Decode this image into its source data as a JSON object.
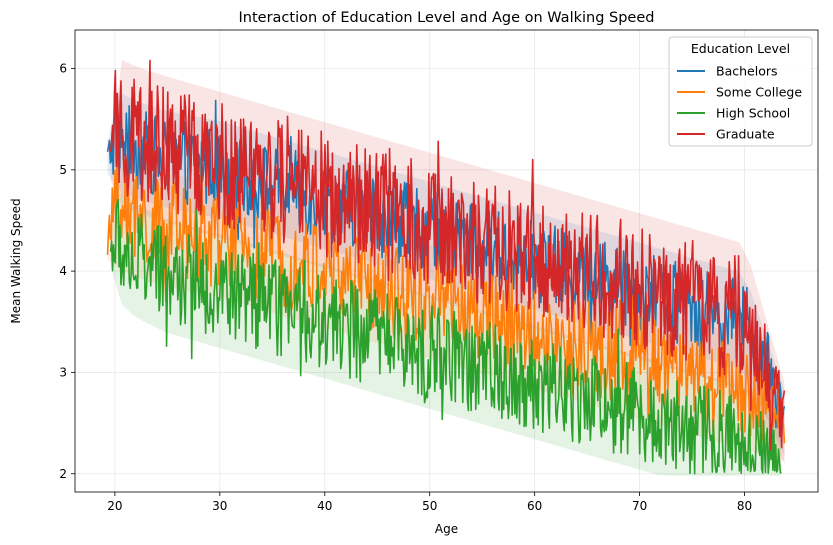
{
  "chart_data": {
    "type": "line",
    "title": "Interaction of Education Level and Age on Walking Speed",
    "xlabel": "Age",
    "ylabel": "Mean Walking Speed",
    "xlim": [
      16.2,
      87
    ],
    "ylim": [
      1.82,
      6.38
    ],
    "xticks": [
      20,
      30,
      40,
      50,
      60,
      70,
      80
    ],
    "yticks": [
      2,
      3,
      4,
      5,
      6
    ],
    "grid": true,
    "legend": {
      "title": "Education Level",
      "placement": "top-right"
    },
    "series": [
      {
        "name": "Bachelors",
        "color": "#1f77b4",
        "x": [
          19.3,
          20,
          22,
          25,
          30,
          35,
          40,
          45,
          50,
          55,
          60,
          65,
          70,
          75,
          80,
          83.8
        ],
        "y": [
          5.12,
          5.3,
          5.2,
          5.1,
          5.0,
          4.85,
          4.7,
          4.55,
          4.4,
          4.25,
          4.1,
          3.95,
          3.8,
          3.65,
          3.5,
          2.5
        ],
        "spread": [
          0.1,
          0.3,
          0.3,
          0.3,
          0.3,
          0.3,
          0.3,
          0.3,
          0.3,
          0.3,
          0.3,
          0.3,
          0.3,
          0.3,
          0.3,
          0.2
        ]
      },
      {
        "name": "Some College",
        "color": "#ff7f0e",
        "x": [
          19.3,
          20,
          22,
          25,
          30,
          35,
          40,
          45,
          50,
          55,
          60,
          65,
          70,
          75,
          80,
          83.8
        ],
        "y": [
          4.27,
          4.6,
          4.5,
          4.4,
          4.3,
          4.15,
          4.0,
          3.85,
          3.7,
          3.55,
          3.4,
          3.25,
          3.1,
          2.95,
          2.8,
          2.45
        ],
        "spread": [
          0.1,
          0.35,
          0.35,
          0.35,
          0.35,
          0.35,
          0.35,
          0.35,
          0.35,
          0.35,
          0.35,
          0.35,
          0.35,
          0.35,
          0.35,
          0.2
        ]
      },
      {
        "name": "High School",
        "color": "#2ca02c",
        "x": [
          19.6,
          20,
          22,
          25,
          30,
          35,
          40,
          45,
          50,
          55,
          60,
          65,
          70,
          75,
          80,
          83.5
        ],
        "y": [
          4.2,
          4.3,
          4.1,
          3.95,
          3.8,
          3.65,
          3.5,
          3.35,
          3.2,
          3.05,
          2.9,
          2.75,
          2.6,
          2.45,
          2.3,
          2.2
        ],
        "spread": [
          0.1,
          0.35,
          0.35,
          0.35,
          0.35,
          0.35,
          0.35,
          0.35,
          0.35,
          0.35,
          0.35,
          0.35,
          0.35,
          0.35,
          0.35,
          0.2
        ]
      },
      {
        "name": "Graduate",
        "color": "#d62728",
        "x": [
          19.6,
          20,
          22,
          25,
          30,
          35,
          40,
          45,
          50,
          55,
          60,
          65,
          70,
          75,
          80,
          83.8
        ],
        "y": [
          5.05,
          5.4,
          5.3,
          5.2,
          5.05,
          4.9,
          4.75,
          4.6,
          4.45,
          4.3,
          4.15,
          4.0,
          3.85,
          3.7,
          3.55,
          2.5
        ],
        "spread": [
          0.1,
          0.45,
          0.45,
          0.45,
          0.45,
          0.45,
          0.45,
          0.45,
          0.45,
          0.45,
          0.45,
          0.45,
          0.45,
          0.45,
          0.45,
          0.25
        ]
      }
    ]
  }
}
